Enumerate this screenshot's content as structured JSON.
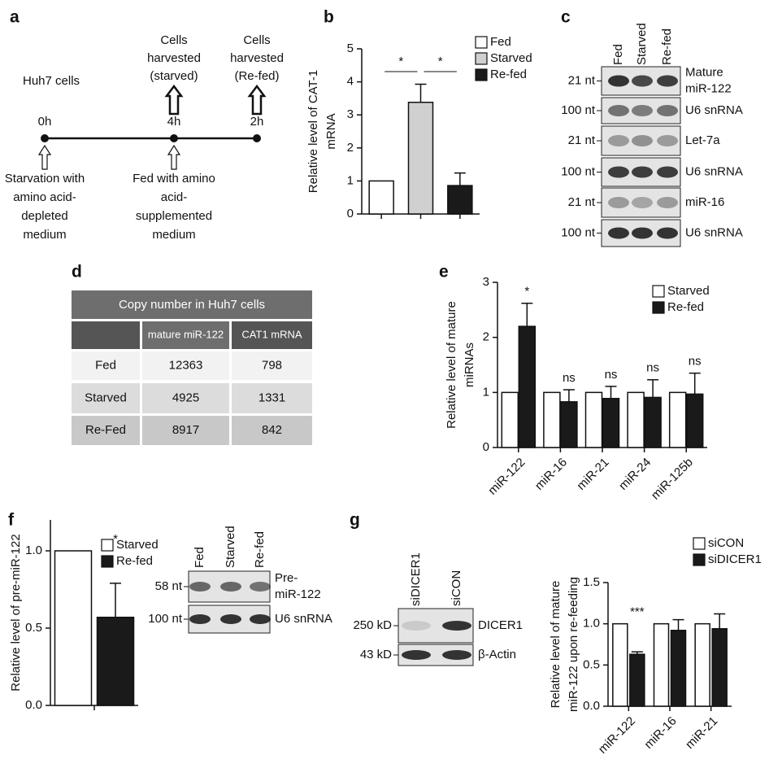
{
  "figure": {
    "a": {
      "panel": "a",
      "cell_line": "Huh7 cells",
      "timepoints": [
        "0h",
        "4h",
        "2h"
      ],
      "harvests": [
        [
          "Cells",
          "harvested",
          "(starved)"
        ],
        [
          "Cells",
          "harvested",
          "(Re-fed)"
        ]
      ],
      "treatments": [
        [
          "Starvation with",
          "amino acid-",
          "depleted",
          "medium"
        ],
        [
          "Fed with amino",
          "acid-",
          "supplemented",
          "medium"
        ]
      ]
    },
    "c": {
      "panel": "c",
      "lanes": [
        "Fed",
        "Starved",
        "Re-fed"
      ],
      "rows": [
        {
          "size": "21 nt",
          "label": [
            "Mature",
            "miR-122"
          ]
        },
        {
          "size": "100 nt",
          "label": [
            "U6 snRNA"
          ]
        },
        {
          "size": "21 nt",
          "label": [
            "Let-7a"
          ]
        },
        {
          "size": "100 nt",
          "label": [
            "U6 snRNA"
          ]
        },
        {
          "size": "21 nt",
          "label": [
            "miR-16"
          ]
        },
        {
          "size": "100 nt",
          "label": [
            "U6 snRNA"
          ]
        }
      ]
    },
    "d": {
      "panel": "d",
      "title": "Copy number in Huh7 cells",
      "header": [
        "mature miR-122",
        "CAT1 mRNA"
      ],
      "rows": [
        [
          "Fed",
          12363,
          798
        ],
        [
          "Starved",
          4925,
          1331
        ],
        [
          "Re-Fed",
          8917,
          842
        ]
      ]
    },
    "f_blot": {
      "lanes": [
        "Fed",
        "Starved",
        "Re-fed"
      ],
      "rows": [
        {
          "size": "58 nt",
          "label": [
            "Pre-",
            "miR-122"
          ]
        },
        {
          "size": "100 nt",
          "label": [
            "U6 snRNA"
          ]
        }
      ]
    },
    "g_blot": {
      "lanes": [
        "siDICER1",
        "siCON"
      ],
      "rows": [
        {
          "size": "250 kD",
          "label": [
            "DICER1"
          ]
        },
        {
          "size": "43 kD",
          "label": [
            "β-Actin"
          ]
        }
      ]
    }
  },
  "chart_data": [
    {
      "type": "bar",
      "panel": "b",
      "ylabel": [
        "Relative level of CAT-1",
        "mRNA"
      ],
      "categories": [
        null,
        null,
        null
      ],
      "series": [
        {
          "name": "Fed",
          "color": "#ffffff",
          "values": [
            1,
            null,
            null
          ],
          "errors": [
            null,
            null,
            null
          ]
        },
        {
          "name": "Starved",
          "color": "#d0d0d0",
          "values": [
            null,
            3.38,
            null
          ],
          "errors": [
            null,
            0.55,
            null
          ]
        },
        {
          "name": "Re-fed",
          "color": "#1a1a1a",
          "values": [
            null,
            null,
            0.86
          ],
          "errors": [
            null,
            null,
            0.38
          ]
        }
      ],
      "significance": [
        "*",
        "*"
      ],
      "ylim": [
        0,
        5
      ],
      "yticks": [
        0,
        1,
        2,
        3,
        4,
        5
      ]
    },
    {
      "type": "bar",
      "panel": "e",
      "ylabel": [
        "Relative level of mature",
        "miRNAs"
      ],
      "categories": [
        "miR-122",
        "miR-16",
        "miR-21",
        "miR-24",
        "miR-125b"
      ],
      "series": [
        {
          "name": "Starved",
          "color": "#ffffff",
          "values": [
            1,
            1,
            1,
            1,
            1
          ]
        },
        {
          "name": "Re-fed",
          "color": "#1a1a1a",
          "values": [
            2.2,
            0.83,
            0.89,
            0.91,
            0.97
          ],
          "errors": [
            0.42,
            0.22,
            0.22,
            0.32,
            0.38
          ]
        }
      ],
      "annotations": [
        "*",
        "ns",
        "ns",
        "ns",
        "ns"
      ],
      "ylim": [
        0,
        3
      ],
      "yticks": [
        0,
        1,
        2,
        3
      ]
    },
    {
      "type": "bar",
      "panel": "f",
      "ylabel": [
        "Relative level of pre-miR-122"
      ],
      "categories": [
        null
      ],
      "series": [
        {
          "name": "Starved",
          "color": "#ffffff",
          "values": [
            1
          ]
        },
        {
          "name": "Re-fed",
          "color": "#1a1a1a",
          "values": [
            0.57
          ],
          "errors": [
            0.22
          ]
        }
      ],
      "annotations": [
        "*"
      ],
      "ylim": [
        0,
        1.2
      ],
      "yticks": [
        {
          "value": 0,
          "label": "0.0"
        },
        {
          "value": 0.5,
          "label": "0.5"
        },
        {
          "value": 1,
          "label": "1.0"
        }
      ]
    },
    {
      "type": "bar",
      "panel": "g",
      "ylabel": [
        "Relative level of mature",
        "miR-122 upon re-feeding"
      ],
      "categories": [
        "miR-122",
        "miR-16",
        "miR-21"
      ],
      "series": [
        {
          "name": "siCON",
          "color": "#ffffff",
          "values": [
            1,
            1,
            1
          ]
        },
        {
          "name": "siDICER1",
          "color": "#1a1a1a",
          "values": [
            0.63,
            0.92,
            0.94
          ],
          "errors": [
            0.03,
            0.13,
            0.18
          ]
        }
      ],
      "annotations": [
        "***",
        null,
        null
      ],
      "ylim": [
        0,
        1.5
      ],
      "yticks": [
        {
          "value": 0,
          "label": "0.0"
        },
        {
          "value": 0.5,
          "label": "0.5"
        },
        {
          "value": 1,
          "label": "1.0"
        },
        {
          "value": 1.5,
          "label": "1.5"
        }
      ]
    }
  ]
}
